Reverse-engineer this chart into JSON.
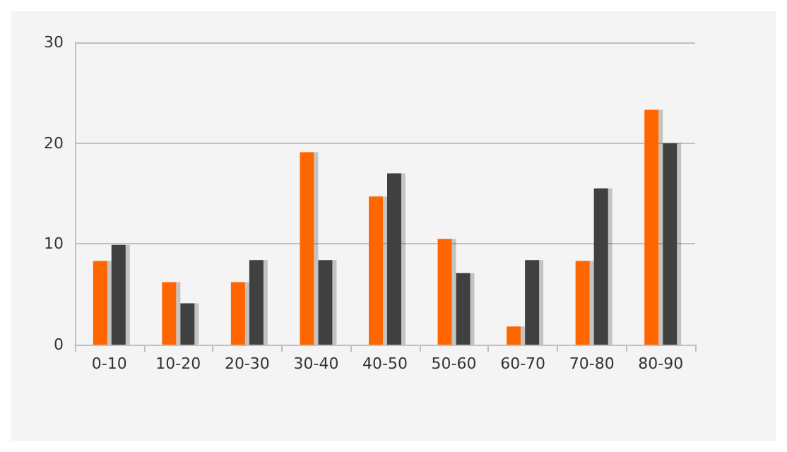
{
  "chart_data": {
    "type": "bar",
    "categories": [
      "0-10",
      "10-20",
      "20-30",
      "30-40",
      "40-50",
      "50-60",
      "60-70",
      "70-80",
      "80-90"
    ],
    "series": [
      {
        "color": "#ff6600",
        "values": [
          8.3,
          6.2,
          6.2,
          19.1,
          14.7,
          10.5,
          1.8,
          8.3,
          23.3
        ]
      },
      {
        "color": "#404040",
        "values": [
          9.9,
          4.1,
          8.4,
          8.4,
          17,
          7.1,
          8.4,
          15.5,
          20
        ]
      }
    ],
    "ylim": [
      0,
      30
    ],
    "yticks": [
      0,
      10,
      20,
      30
    ],
    "grid": "y"
  }
}
